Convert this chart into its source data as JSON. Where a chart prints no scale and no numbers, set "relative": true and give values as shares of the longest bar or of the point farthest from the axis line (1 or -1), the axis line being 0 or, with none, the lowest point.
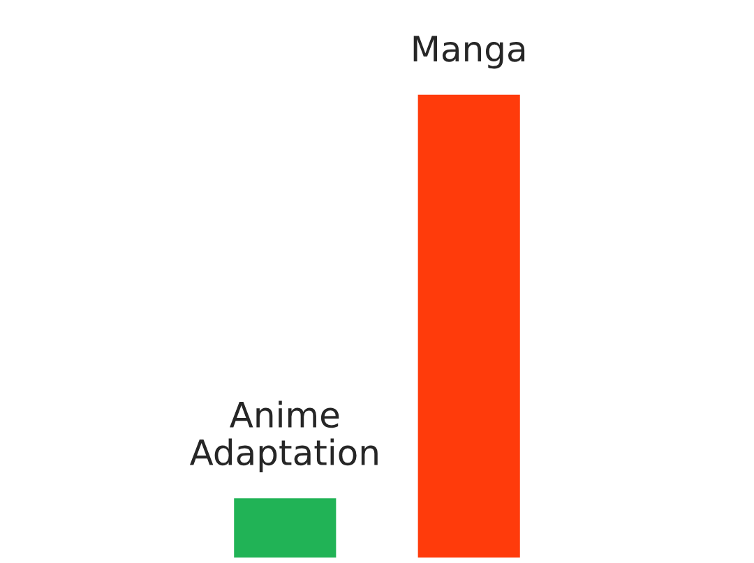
{
  "chart_data": {
    "type": "bar",
    "relative": true,
    "categories": [
      "Anime Adaptation",
      "Manga"
    ],
    "values": [
      0.13,
      1
    ],
    "colors": [
      "#21b356",
      "#ff3b0b"
    ]
  }
}
